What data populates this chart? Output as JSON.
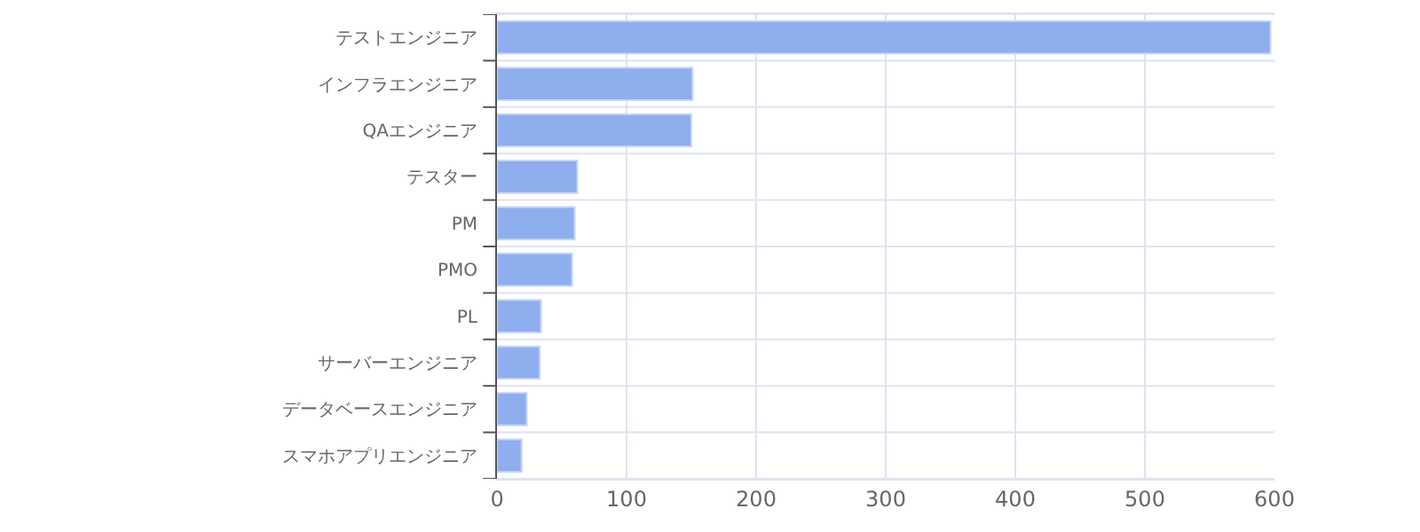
{
  "chart_data": {
    "type": "bar",
    "orientation": "horizontal",
    "categories": [
      "テストエンジニア",
      "インフラエンジニア",
      "QAエンジニア",
      "テスター",
      "PM",
      "PMO",
      "PL",
      "サーバーエンジニア",
      "データベースエンジニア",
      "スマホアプリエンジニア"
    ],
    "values": [
      597,
      151,
      150,
      62,
      60,
      58,
      34,
      33,
      23,
      19
    ],
    "color": "#8eaeee",
    "xlim": [
      0,
      600
    ],
    "xticks": [
      0,
      100,
      200,
      300,
      400,
      500,
      600
    ],
    "grid": true
  }
}
